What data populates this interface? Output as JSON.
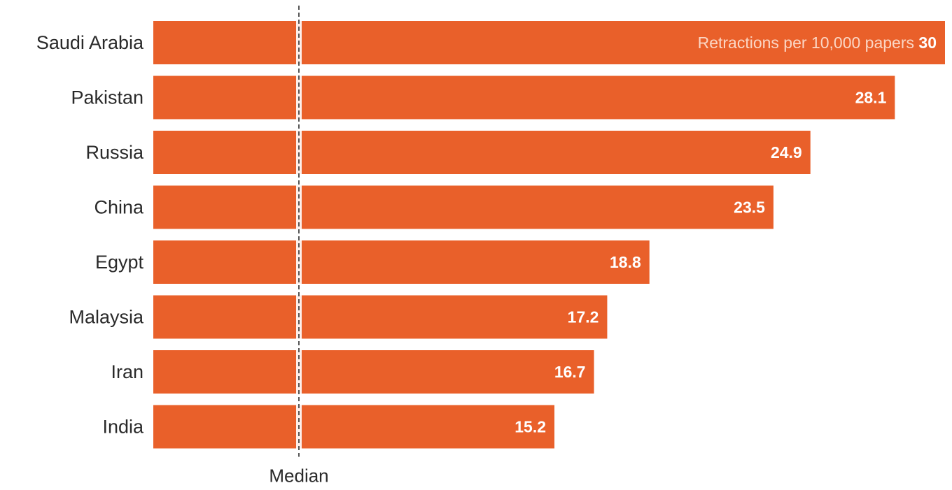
{
  "chart_data": {
    "type": "bar",
    "orientation": "horizontal",
    "categories": [
      "Saudi Arabia",
      "Pakistan",
      "Russia",
      "China",
      "Egypt",
      "Malaysia",
      "Iran",
      "India"
    ],
    "values": [
      30.0,
      28.1,
      24.9,
      23.5,
      18.8,
      17.2,
      16.7,
      15.2
    ],
    "value_labels": [
      "30",
      "28.1",
      "24.9",
      "23.5",
      "18.8",
      "17.2",
      "16.7",
      "15.2"
    ],
    "unit_label": "Retractions per 10,000 papers",
    "reference_line": {
      "label": "Median"
    },
    "title": "",
    "xlabel": "",
    "ylabel": "",
    "grid": false,
    "legend": "none",
    "bar_color": "#e9602a",
    "median_line_color": "#555555"
  }
}
